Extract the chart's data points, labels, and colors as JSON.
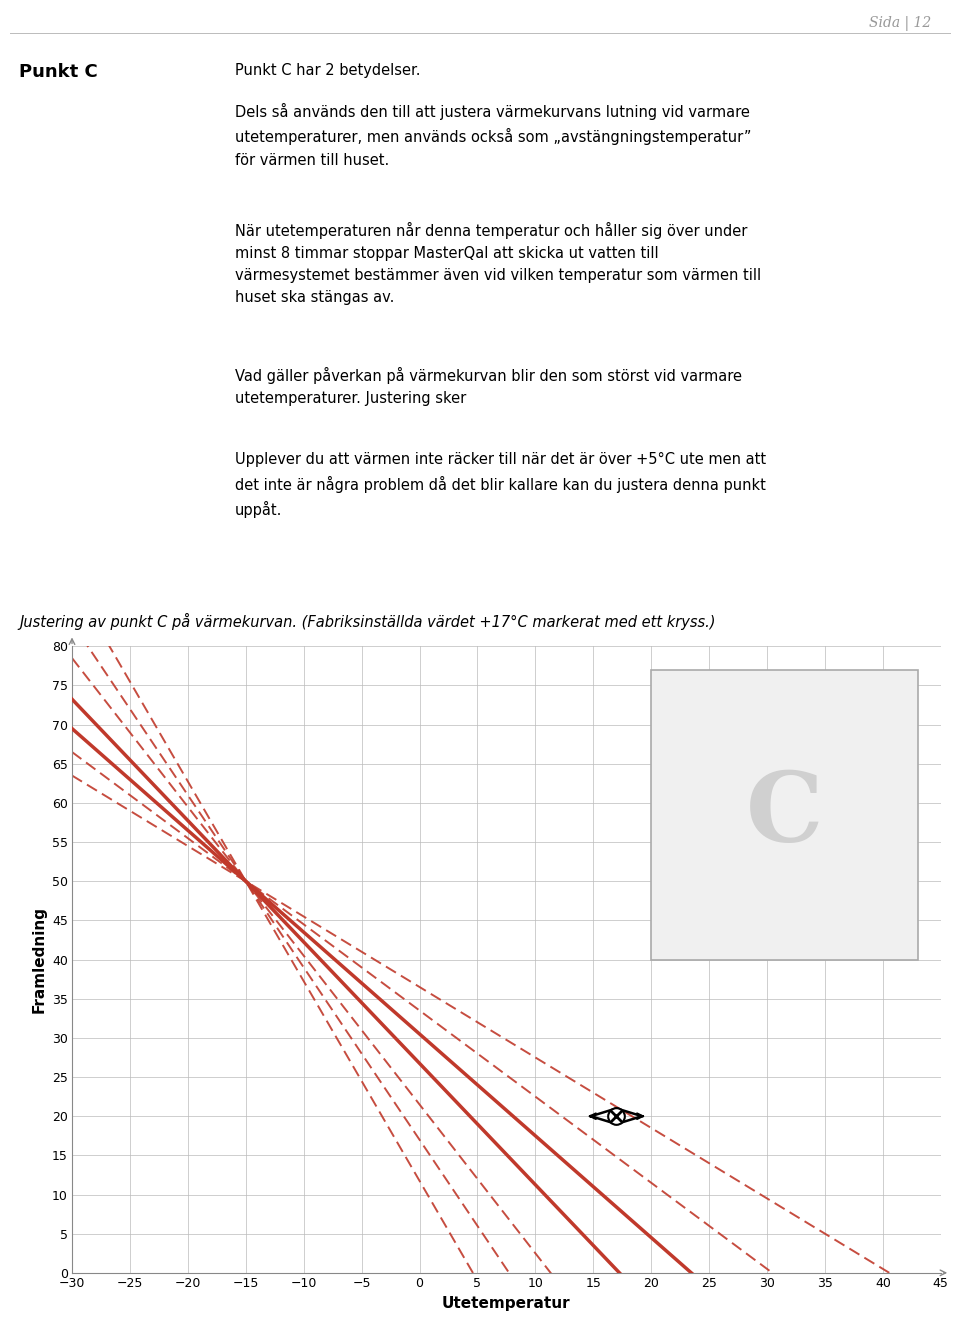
{
  "page_header": "Sida | 12",
  "title_bold": "Punkt C",
  "para1": "Punkt C har 2 betydelser.",
  "para2": "Dels så används den till att justera värmekurvans lutning vid varmare\nutetemperaturer, men används också som „avstängningstemperatur”\nför värmen till huset.",
  "para3": "När utetemperaturen når denna temperatur och håller sig över under\nminst 8 timmar stoppar MasterQal att skicka ut vatten till\nvärmesystemet bestämmer även vid vilken temperatur som värmen till\nhuset ska stängas av.",
  "para4": "Vad gäller påverkan på värmekurvan blir den som störst vid varmare\nutetemperaturer. Justering sker",
  "para5": "Upplever du att värmen inte räcker till när det är över +5°C ute men att\ndet inte är några problem då det blir kallare kan du justera denna punkt\nuppåt.",
  "caption": "Justering av punkt C på värmekurvan. (Fabriksinställda värdet +17°C markerat med ett kryss.)",
  "xmin": -30,
  "xmax": 45,
  "ymin": 0,
  "ymax": 80,
  "xlabel": "Utetemperatur",
  "ylabel": "Framledning",
  "xticks": [
    -30,
    -25,
    -20,
    -15,
    -10,
    -5,
    0,
    5,
    10,
    15,
    20,
    25,
    30,
    35,
    40,
    45
  ],
  "yticks": [
    0,
    5,
    10,
    15,
    20,
    25,
    30,
    35,
    40,
    45,
    50,
    55,
    60,
    65,
    70,
    75,
    80
  ],
  "line_color": "#c0392b",
  "pivot_x": -15,
  "pivot_y": 50,
  "marker_x": 17,
  "marker_y": 20,
  "solid_slopes": [
    -1.3,
    -1.55
  ],
  "dashed_slopes": [
    -0.9,
    -1.1,
    -1.9,
    -2.2,
    -2.55
  ],
  "background_color": "#ffffff",
  "grid_color": "#bbbbbb",
  "box_color": "#eeeeee"
}
